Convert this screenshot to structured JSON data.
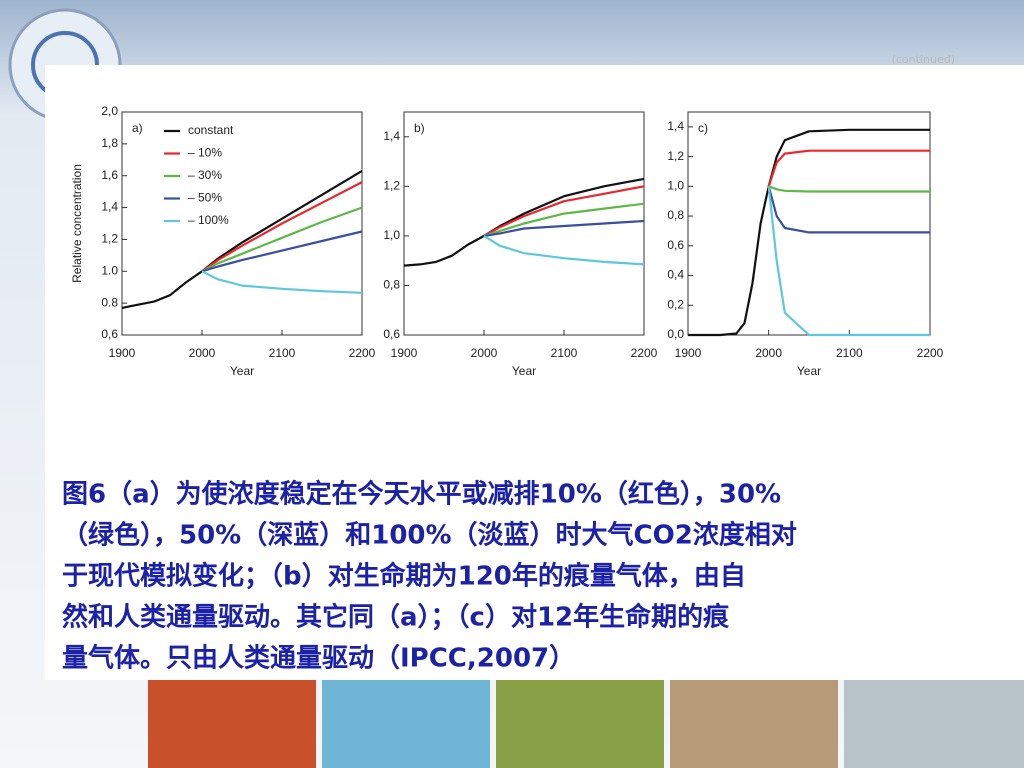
{
  "note_top": "(continued)",
  "chart_data": [
    {
      "type": "line",
      "panel_label": "a)",
      "xlabel": "Year",
      "ylabel": "Relative concentration",
      "x": [
        1900,
        1920,
        1940,
        1960,
        1980,
        2000,
        2020,
        2050,
        2100,
        2150,
        2200
      ],
      "xlim": [
        1900,
        2200
      ],
      "xticks": [
        1900,
        2000,
        2100,
        2200
      ],
      "ylim": [
        0.6,
        2.0
      ],
      "yticks": [
        {
          "value": 0.6,
          "label": "0,6"
        },
        {
          "value": 0.8,
          "label": "0.8"
        },
        {
          "value": 1.0,
          "label": "1.0"
        },
        {
          "value": 1.2,
          "label": "1,2"
        },
        {
          "value": 1.4,
          "label": "1,4"
        },
        {
          "value": 1.6,
          "label": "1,6"
        },
        {
          "value": 1.8,
          "label": "1,8"
        },
        {
          "value": 2.0,
          "label": "2,0"
        }
      ],
      "series": [
        {
          "name": "constant",
          "color": "#111111",
          "values": [
            0.77,
            0.79,
            0.81,
            0.85,
            0.93,
            1.0,
            1.08,
            1.18,
            1.33,
            1.48,
            1.63
          ]
        },
        {
          "name": "– 10%",
          "color": "#e8282c",
          "values": [
            null,
            null,
            null,
            null,
            null,
            1.0,
            1.07,
            1.16,
            1.3,
            1.43,
            1.56
          ]
        },
        {
          "name": "– 30%",
          "color": "#5cb946",
          "values": [
            null,
            null,
            null,
            null,
            null,
            1.0,
            1.05,
            1.11,
            1.21,
            1.31,
            1.4
          ]
        },
        {
          "name": "– 50%",
          "color": "#3a4fa0",
          "values": [
            null,
            null,
            null,
            null,
            null,
            1.0,
            1.03,
            1.07,
            1.13,
            1.19,
            1.25
          ]
        },
        {
          "name": "– 100%",
          "color": "#5cc7dd",
          "values": [
            null,
            null,
            null,
            null,
            null,
            1.0,
            0.95,
            0.91,
            0.89,
            0.875,
            0.865
          ]
        }
      ]
    },
    {
      "type": "line",
      "panel_label": "b)",
      "xlabel": "Year",
      "x": [
        1900,
        1920,
        1940,
        1960,
        1980,
        2000,
        2020,
        2050,
        2100,
        2150,
        2200
      ],
      "xlim": [
        1900,
        2200
      ],
      "xticks": [
        1900,
        2000,
        2100,
        2200
      ],
      "ylim": [
        0.6,
        1.5
      ],
      "yticks": [
        {
          "value": 0.6,
          "label": "0,6"
        },
        {
          "value": 0.8,
          "label": "0,8"
        },
        {
          "value": 1.0,
          "label": "1,0"
        },
        {
          "value": 1.2,
          "label": "1,2"
        },
        {
          "value": 1.4,
          "label": "1,4"
        }
      ],
      "series": [
        {
          "color": "#111111",
          "values": [
            0.88,
            0.885,
            0.895,
            0.92,
            0.965,
            1.0,
            1.04,
            1.09,
            1.16,
            1.2,
            1.23
          ]
        },
        {
          "color": "#e8282c",
          "values": [
            null,
            null,
            null,
            null,
            null,
            1.0,
            1.035,
            1.08,
            1.14,
            1.17,
            1.2
          ]
        },
        {
          "color": "#5cb946",
          "values": [
            null,
            null,
            null,
            null,
            null,
            1.0,
            1.02,
            1.05,
            1.09,
            1.11,
            1.13
          ]
        },
        {
          "color": "#3a4fa0",
          "values": [
            null,
            null,
            null,
            null,
            null,
            1.0,
            1.01,
            1.03,
            1.04,
            1.05,
            1.06
          ]
        },
        {
          "color": "#5cc7dd",
          "values": [
            null,
            null,
            null,
            null,
            null,
            1.0,
            0.96,
            0.93,
            0.91,
            0.895,
            0.885
          ]
        }
      ]
    },
    {
      "type": "line",
      "panel_label": "c)",
      "xlabel": "Year",
      "x": [
        1900,
        1940,
        1960,
        1970,
        1980,
        1990,
        2000,
        2010,
        2020,
        2050,
        2100,
        2150,
        2200
      ],
      "xlim": [
        1900,
        2200
      ],
      "xticks": [
        1900,
        2000,
        2100,
        2200
      ],
      "ylim": [
        0,
        1.5
      ],
      "yticks": [
        {
          "value": 0,
          "label": "0,0"
        },
        {
          "value": 0.2,
          "label": "0,2"
        },
        {
          "value": 0.4,
          "label": "0,4"
        },
        {
          "value": 0.6,
          "label": "0,6"
        },
        {
          "value": 0.8,
          "label": "0,8"
        },
        {
          "value": 1.0,
          "label": "1,0"
        },
        {
          "value": 1.2,
          "label": "1,2"
        },
        {
          "value": 1.4,
          "label": "1,4"
        }
      ],
      "series": [
        {
          "color": "#111111",
          "values": [
            0,
            0,
            0.01,
            0.08,
            0.35,
            0.75,
            1.0,
            1.2,
            1.31,
            1.37,
            1.38,
            1.38,
            1.38
          ]
        },
        {
          "color": "#e8282c",
          "values": [
            null,
            null,
            null,
            null,
            null,
            null,
            1.0,
            1.16,
            1.22,
            1.24,
            1.24,
            1.24,
            1.24
          ]
        },
        {
          "color": "#5cb946",
          "values": [
            null,
            null,
            null,
            null,
            null,
            null,
            1.0,
            0.98,
            0.97,
            0.965,
            0.965,
            0.965,
            0.965
          ]
        },
        {
          "color": "#3a4fa0",
          "values": [
            null,
            null,
            null,
            null,
            null,
            null,
            1.0,
            0.8,
            0.72,
            0.69,
            0.69,
            0.69,
            0.69
          ]
        },
        {
          "color": "#5cc7dd",
          "values": [
            null,
            null,
            null,
            null,
            null,
            null,
            1.0,
            0.5,
            0.15,
            0,
            0,
            0,
            0
          ]
        }
      ]
    }
  ],
  "caption": [
    "图6（a）为使浓度稳定在今天水平或减排10%（红色），30%",
    "（绿色），50%（深蓝）和100%（淡蓝）时大气CO2浓度相对",
    "于现代模拟变化；（b）对生命期为120年的痕量气体，由自",
    "然和人类通量驱动。其它同（a）；（c）对12年生命期的痕",
    "量气体。只由人类通量驱动（IPCC,2007）"
  ]
}
